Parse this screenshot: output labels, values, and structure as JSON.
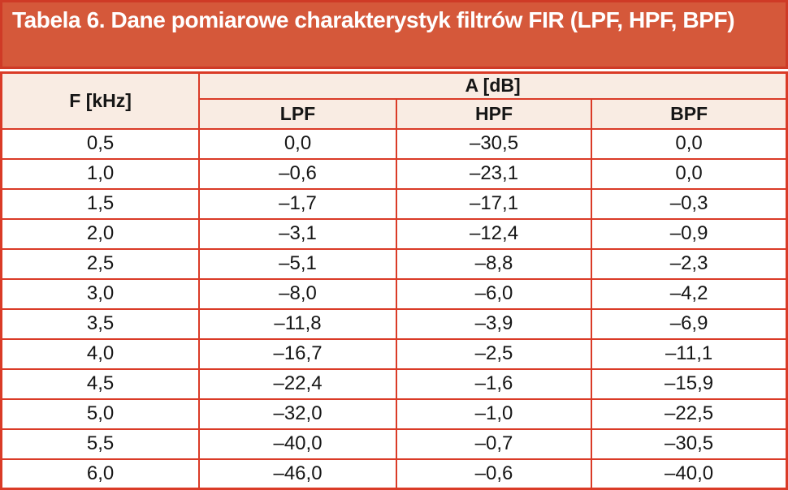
{
  "title": "Tabela 6. Dane pomiarowe charakterystyk filtrów FIR (LPF, HPF, BPF)",
  "table": {
    "col_f_header": "F [kHz]",
    "group_header": "A [dB]",
    "sub_headers": [
      "LPF",
      "HPF",
      "BPF"
    ],
    "rows": [
      [
        "0,5",
        "0,0",
        "–30,5",
        "0,0"
      ],
      [
        "1,0",
        "–0,6",
        "–23,1",
        "0,0"
      ],
      [
        "1,5",
        "–1,7",
        "–17,1",
        "–0,3"
      ],
      [
        "2,0",
        "–3,1",
        "–12,4",
        "–0,9"
      ],
      [
        "2,5",
        "–5,1",
        "–8,8",
        "–2,3"
      ],
      [
        "3,0",
        "–8,0",
        "–6,0",
        "–4,2"
      ],
      [
        "3,5",
        "–11,8",
        "–3,9",
        "–6,9"
      ],
      [
        "4,0",
        "–16,7",
        "–2,5",
        "–11,1"
      ],
      [
        "4,5",
        "–22,4",
        "–1,6",
        "–15,9"
      ],
      [
        "5,0",
        "–32,0",
        "–1,0",
        "–22,5"
      ],
      [
        "5,5",
        "–40,0",
        "–0,7",
        "–30,5"
      ],
      [
        "6,0",
        "–46,0",
        "–0,6",
        "–40,0"
      ]
    ]
  },
  "chart_data": {
    "type": "table",
    "title": "Tabela 6. Dane pomiarowe charakterystyk filtrów FIR (LPF, HPF, BPF)",
    "xlabel": "F [kHz]",
    "ylabel": "A [dB]",
    "categories": [
      0.5,
      1.0,
      1.5,
      2.0,
      2.5,
      3.0,
      3.5,
      4.0,
      4.5,
      5.0,
      5.5,
      6.0
    ],
    "series": [
      {
        "name": "LPF",
        "values": [
          0.0,
          -0.6,
          -1.7,
          -3.1,
          -5.1,
          -8.0,
          -11.8,
          -16.7,
          -22.4,
          -32.0,
          -40.0,
          -46.0
        ]
      },
      {
        "name": "HPF",
        "values": [
          -30.5,
          -23.1,
          -17.1,
          -12.4,
          -8.8,
          -6.0,
          -3.9,
          -2.5,
          -1.6,
          -1.0,
          -0.7,
          -0.6
        ]
      },
      {
        "name": "BPF",
        "values": [
          0.0,
          0.0,
          -0.3,
          -0.9,
          -2.3,
          -4.2,
          -6.9,
          -11.1,
          -15.9,
          -22.5,
          -30.5,
          -40.0
        ]
      }
    ],
    "decimal_separator": ",",
    "grid": true,
    "legend_position": "none"
  },
  "colors": {
    "title_bg": "#d5583a",
    "title_text": "#ffffff",
    "border": "#da3b27",
    "header_bg": "#f9ece3",
    "cell_bg": "#ffffff",
    "cell_text": "#161616"
  }
}
